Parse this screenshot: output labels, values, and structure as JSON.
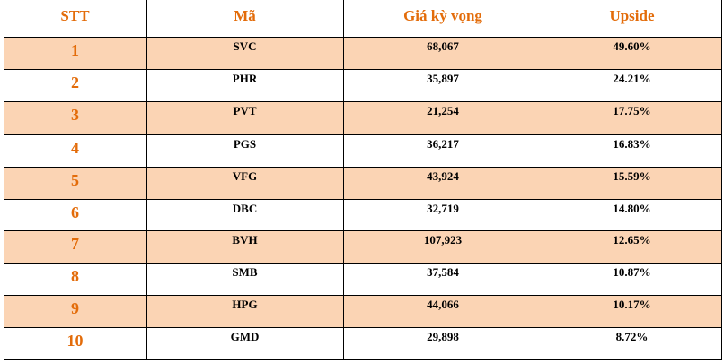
{
  "table": {
    "header": [
      "STT",
      "Mã",
      "Giá kỳ vọng",
      "Upside"
    ],
    "rows": [
      [
        "1",
        "SVC",
        "68,067",
        "49.60%"
      ],
      [
        "2",
        "PHR",
        "35,897",
        "24.21%"
      ],
      [
        "3",
        "PVT",
        "21,254",
        "17.75%"
      ],
      [
        "4",
        "PGS",
        "36,217",
        "16.83%"
      ],
      [
        "5",
        "VFG",
        "43,924",
        "15.59%"
      ],
      [
        "6",
        "DBC",
        "32,719",
        "14.80%"
      ],
      [
        "7",
        "BVH",
        "107,923",
        "12.65%"
      ],
      [
        "8",
        "SMB",
        "37,584",
        "10.87%"
      ],
      [
        "9",
        "HPG",
        "44,066",
        "10.17%"
      ],
      [
        "10",
        "GMD",
        "29,898",
        "8.72%"
      ]
    ]
  }
}
